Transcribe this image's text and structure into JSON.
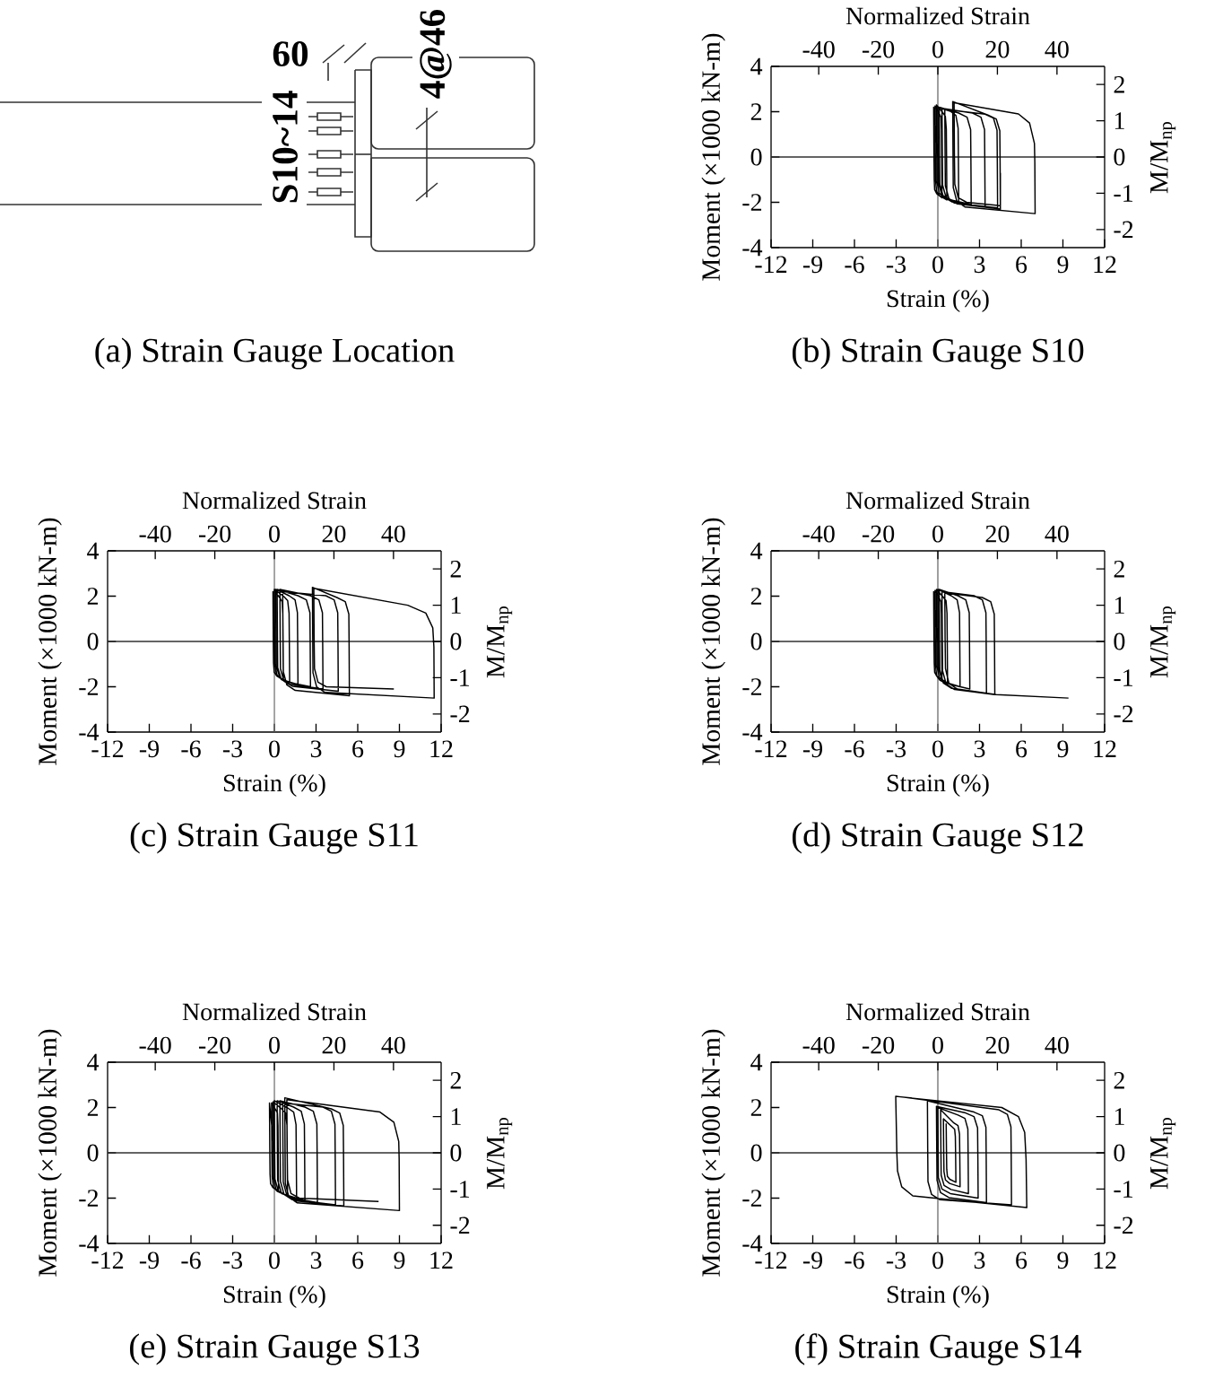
{
  "chart_data": [
    {
      "type": "other",
      "title": "(a) Strain Gauge Location",
      "annotations": [
        "60",
        "4@46",
        "S10~14"
      ]
    },
    {
      "type": "line",
      "title": "(b) Strain Gauge S10",
      "xlabel": "Strain (%)",
      "ylabel": "Moment (×1000 kN-m)",
      "x2label": "Normalized Strain",
      "y2label": "M/M$_{np}$",
      "xlim": [
        -12,
        12
      ],
      "xticks": [
        -12,
        -9,
        -6,
        -3,
        0,
        3,
        6,
        9,
        12
      ],
      "x2lim": [
        -56,
        56
      ],
      "x2ticks": [
        -40,
        -20,
        0,
        20,
        40
      ],
      "ylim": [
        -4,
        4
      ],
      "yticks": [
        -4,
        -2,
        0,
        2,
        4
      ],
      "y2lim": [
        -2.5,
        2.5
      ],
      "y2ticks": [
        -2,
        -1,
        0,
        1,
        2
      ],
      "ref_lines": [
        {
          "axis": "x",
          "value": 0,
          "color": "#707070"
        },
        {
          "axis": "y",
          "value": 0,
          "color": "#303030"
        }
      ],
      "color": "#000000",
      "x": [
        0,
        -0.3,
        -0.28,
        -0.26,
        -0.23,
        -0.08,
        0.3,
        0.28,
        0.26,
        0.23,
        0.08,
        -0.2,
        -0.18,
        -0.16,
        -0.09,
        0.12,
        0.65,
        0.63,
        0.61,
        0.54,
        0.33,
        -0.1,
        -0.08,
        -0.06,
        0.1,
        0.5,
        1.5,
        1.48,
        1.46,
        1.3,
        0.9,
        0,
        0.02,
        0.04,
        0.3,
        0.9,
        2.4,
        2.38,
        2.36,
        2.1,
        1.5,
        0.1,
        0.12,
        0.14,
        0.4,
        1.0,
        3.4,
        3.38,
        3.36,
        3.1,
        2.5,
        0.3,
        0.32,
        0.34,
        0.6,
        1.2,
        4.3,
        4.28,
        4.26,
        4.0,
        3.4,
        0.5,
        0.52,
        0.54,
        0.8,
        1.4,
        4.5,
        4.48,
        4.46,
        4.2,
        3.6,
        1.07,
        1.09,
        1.11,
        1.37,
        1.97,
        7.0,
        6.98,
        6.95,
        6.6,
        5.8,
        1.17,
        1.19,
        1.22,
        1.47,
        2.07,
        4.5,
        4.5
      ],
      "values": [
        0,
        2.2,
        0.22,
        -0.99,
        -1.44,
        -1.62,
        -1.8,
        -0.18,
        1.21,
        1.76,
        1.94,
        2.25,
        0.23,
        -1.05,
        -1.52,
        -1.71,
        -1.9,
        -0.19,
        1.24,
        1.8,
        1.98,
        2.3,
        0.23,
        -1.1,
        -1.6,
        -1.8,
        -2.0,
        -0.2,
        1.27,
        1.84,
        2.02,
        2.2,
        0.22,
        -1.16,
        -1.68,
        -1.89,
        -2.1,
        -0.21,
        1.21,
        1.76,
        1.94,
        2.2,
        0.22,
        -1.21,
        -1.76,
        -1.98,
        -2.2,
        -0.22,
        1.21,
        1.76,
        1.94,
        2.15,
        0.22,
        -1.24,
        -1.8,
        -2.03,
        -2.25,
        -0.23,
        1.18,
        1.72,
        1.89,
        2.1,
        0.21,
        -1.27,
        -1.84,
        -2.07,
        -2.3,
        -0.23,
        1.16,
        1.68,
        1.85,
        2.45,
        0.25,
        -1.35,
        -1.96,
        -2.21,
        -2.5,
        -0.25,
        0.6,
        1.5,
        1.9,
        2.4,
        0.2,
        -1.2,
        -1.8,
        -2.0,
        -2.15,
        -0.7
      ]
    },
    {
      "type": "line",
      "title": "(c) Strain Gauge S11",
      "xlabel": "Strain (%)",
      "ylabel": "Moment (×1000 kN-m)",
      "x2label": "Normalized Strain",
      "y2label": "M/M$_{np}$",
      "xlim": [
        -12,
        12
      ],
      "xticks": [
        -12,
        -9,
        -6,
        -3,
        0,
        3,
        6,
        9,
        12
      ],
      "x2lim": [
        -56,
        56
      ],
      "x2ticks": [
        -40,
        -20,
        0,
        20,
        40
      ],
      "ylim": [
        -4,
        4
      ],
      "yticks": [
        -4,
        -2,
        0,
        2,
        4
      ],
      "y2lim": [
        -2.5,
        2.5
      ],
      "y2ticks": [
        -2,
        -1,
        0,
        1,
        2
      ],
      "ref_lines": [
        {
          "axis": "x",
          "value": 0,
          "color": "#707070"
        },
        {
          "axis": "y",
          "value": 0,
          "color": "#303030"
        }
      ],
      "color": "#000000",
      "x": [
        0,
        -0.1,
        -0.08,
        -0.06,
        -0.01,
        0.18,
        0.65,
        0.63,
        0.61,
        0.56,
        0.37,
        0,
        0.02,
        0.04,
        0.14,
        0.41,
        1.1,
        1.08,
        1.06,
        0.96,
        0.69,
        0,
        0.02,
        0.04,
        0.21,
        0.64,
        1.7,
        1.68,
        1.66,
        1.49,
        1.06,
        0.1,
        0.12,
        0.14,
        0.4,
        1.0,
        2.6,
        2.58,
        2.56,
        2.3,
        1.7,
        0.2,
        0.22,
        0.24,
        0.5,
        1.1,
        3.5,
        3.48,
        3.46,
        3.2,
        2.6,
        0.4,
        0.42,
        0.44,
        0.7,
        1.3,
        4.6,
        4.58,
        4.56,
        4.3,
        3.7,
        0.6,
        0.62,
        0.64,
        0.9,
        1.5,
        5.4,
        5.38,
        5.36,
        5.1,
        4.5,
        2.74,
        2.76,
        2.78,
        3.04,
        3.64,
        11.5,
        11.48,
        11.4,
        10.9,
        9.6,
        2.84,
        2.86,
        2.89,
        3.14,
        3.74,
        8.6
      ],
      "values": [
        0,
        2.2,
        0.22,
        -0.94,
        -1.36,
        -1.53,
        -1.7,
        -0.17,
        1.21,
        1.76,
        1.94,
        2.25,
        0.23,
        -0.99,
        -1.44,
        -1.62,
        -1.8,
        -0.18,
        1.24,
        1.8,
        1.98,
        2.3,
        0.23,
        -1.05,
        -1.52,
        -1.71,
        -1.9,
        -0.19,
        1.27,
        1.84,
        2.02,
        2.3,
        0.23,
        -1.1,
        -1.6,
        -1.8,
        -2.0,
        -0.2,
        1.27,
        1.84,
        2.02,
        2.3,
        0.23,
        -1.16,
        -1.68,
        -1.89,
        -2.1,
        -0.21,
        1.27,
        1.84,
        2.02,
        2.3,
        0.23,
        -1.21,
        -1.76,
        -1.98,
        -2.2,
        -0.22,
        1.27,
        1.84,
        2.02,
        2.2,
        0.22,
        -1.32,
        -1.92,
        -2.16,
        -2.4,
        -0.24,
        1.21,
        1.76,
        1.94,
        2.39,
        0.24,
        -1.38,
        -2.0,
        -2.25,
        -2.5,
        -0.25,
        0.6,
        1.25,
        1.6,
        2.35,
        0.2,
        -1.2,
        -1.8,
        -2.0,
        -2.1
      ]
    },
    {
      "type": "line",
      "title": "(d) Strain Gauge S12",
      "xlabel": "Strain (%)",
      "ylabel": "Moment (×1000 kN-m)",
      "x2label": "Normalized Strain",
      "y2label": "M/M$_{np}$",
      "xlim": [
        -12,
        12
      ],
      "xticks": [
        -12,
        -9,
        -6,
        -3,
        0,
        3,
        6,
        9,
        12
      ],
      "x2lim": [
        -56,
        56
      ],
      "x2ticks": [
        -40,
        -20,
        0,
        20,
        40
      ],
      "ylim": [
        -4,
        4
      ],
      "yticks": [
        -4,
        -2,
        0,
        2,
        4
      ],
      "y2lim": [
        -2.5,
        2.5
      ],
      "y2ticks": [
        -2,
        -1,
        0,
        1,
        2
      ],
      "ref_lines": [
        {
          "axis": "x",
          "value": 0,
          "color": "#707070"
        },
        {
          "axis": "y",
          "value": 0,
          "color": "#303030"
        }
      ],
      "color": "#000000",
      "x": [
        0,
        -0.3,
        -0.28,
        -0.26,
        -0.23,
        -0.08,
        0.3,
        0.28,
        0.26,
        0.23,
        0.08,
        -0.2,
        -0.18,
        -0.16,
        -0.09,
        0.14,
        0.7,
        0.68,
        0.66,
        0.59,
        0.36,
        -0.1,
        -0.08,
        -0.06,
        0.11,
        0.54,
        1.6,
        1.58,
        1.56,
        1.39,
        0.96,
        0,
        0.02,
        0.04,
        0.29,
        0.86,
        2.3,
        2.28,
        2.26,
        2.01,
        1.44,
        0.1,
        0.12,
        0.14,
        0.4,
        1.0,
        3.5,
        3.48,
        3.46,
        3.2,
        2.6,
        0.3,
        0.32,
        0.34,
        0.6,
        1.2,
        4.1,
        4.08,
        4.06,
        3.8,
        3.2,
        0.5,
        0.52,
        0.55,
        0.8,
        1.4,
        4.2,
        9.4
      ],
      "values": [
        0,
        2.2,
        0.22,
        -0.94,
        -1.36,
        -1.53,
        -1.7,
        -0.17,
        1.21,
        1.76,
        1.94,
        2.25,
        0.23,
        -1.05,
        -1.52,
        -1.71,
        -1.9,
        -0.19,
        1.24,
        1.8,
        1.98,
        2.3,
        0.23,
        -1.1,
        -1.6,
        -1.8,
        -2.0,
        -0.2,
        1.27,
        1.84,
        2.02,
        2.3,
        0.23,
        -1.16,
        -1.68,
        -1.89,
        -2.1,
        -0.21,
        1.27,
        1.84,
        2.02,
        2.3,
        0.23,
        -1.27,
        -1.84,
        -2.07,
        -2.3,
        -0.23,
        1.27,
        1.84,
        2.02,
        2.2,
        0.22,
        -1.29,
        -1.88,
        -2.12,
        -2.35,
        -0.24,
        1.21,
        1.76,
        1.94,
        2.15,
        0.2,
        -1.2,
        -1.85,
        -2.1,
        -2.35,
        -2.5
      ]
    },
    {
      "type": "line",
      "title": "(e) Strain Gauge S13",
      "xlabel": "Strain (%)",
      "ylabel": "Moment (×1000 kN-m)",
      "x2label": "Normalized Strain",
      "y2label": "M/M$_{np}$",
      "xlim": [
        -12,
        12
      ],
      "xticks": [
        -12,
        -9,
        -6,
        -3,
        0,
        3,
        6,
        9,
        12
      ],
      "x2lim": [
        -56,
        56
      ],
      "x2ticks": [
        -40,
        -20,
        0,
        20,
        40
      ],
      "ylim": [
        -4,
        4
      ],
      "yticks": [
        -4,
        -2,
        0,
        2,
        4
      ],
      "y2lim": [
        -2.5,
        2.5
      ],
      "y2ticks": [
        -2,
        -1,
        0,
        1,
        2
      ],
      "ref_lines": [
        {
          "axis": "x",
          "value": 0,
          "color": "#707070"
        },
        {
          "axis": "y",
          "value": 0,
          "color": "#303030"
        }
      ],
      "color": "#000000",
      "x": [
        0,
        -0.35,
        -0.33,
        -0.31,
        -0.27,
        -0.11,
        0.3,
        0.28,
        0.26,
        0.22,
        0.06,
        -0.2,
        -0.18,
        -0.16,
        -0.06,
        0.23,
        0.95,
        0.93,
        0.91,
        0.81,
        0.52,
        -0.1,
        -0.08,
        -0.06,
        0.11,
        0.54,
        1.6,
        1.58,
        1.56,
        1.39,
        0.96,
        0,
        0.02,
        0.04,
        0.28,
        0.83,
        2.2,
        2.18,
        2.16,
        1.93,
        1.38,
        0.2,
        0.22,
        0.24,
        0.5,
        1.1,
        3.1,
        3.08,
        3.06,
        2.8,
        2.2,
        0.4,
        0.42,
        0.44,
        0.7,
        1.3,
        4.4,
        4.38,
        4.36,
        4.1,
        3.5,
        0.6,
        0.62,
        0.64,
        0.9,
        1.5,
        5.0,
        4.98,
        4.96,
        4.7,
        4.1,
        0.75,
        0.77,
        0.79,
        1.05,
        1.65,
        9.0,
        8.98,
        8.95,
        8.6,
        7.6,
        0.9,
        0.92,
        0.95,
        1.2,
        1.8,
        7.5
      ],
      "values": [
        0,
        2.2,
        0.22,
        -0.94,
        -1.36,
        -1.53,
        -1.7,
        -0.17,
        1.21,
        1.76,
        1.94,
        2.2,
        0.22,
        -1.05,
        -1.52,
        -1.71,
        -1.9,
        -0.19,
        1.21,
        1.76,
        1.94,
        2.25,
        0.23,
        -1.1,
        -1.6,
        -1.8,
        -2.0,
        -0.2,
        1.24,
        1.8,
        1.98,
        2.3,
        0.23,
        -1.16,
        -1.68,
        -1.89,
        -2.1,
        -0.21,
        1.27,
        1.84,
        2.02,
        2.3,
        0.23,
        -1.21,
        -1.76,
        -1.98,
        -2.2,
        -0.22,
        1.27,
        1.84,
        2.02,
        2.3,
        0.23,
        -1.27,
        -1.84,
        -2.07,
        -2.3,
        -0.23,
        1.27,
        1.84,
        2.02,
        2.2,
        0.22,
        -1.29,
        -1.88,
        -2.12,
        -2.35,
        -0.24,
        1.21,
        1.76,
        1.94,
        2.43,
        0.24,
        -1.35,
        -1.96,
        -2.21,
        -2.55,
        -0.25,
        0.5,
        1.35,
        1.8,
        2.35,
        0.2,
        -1.2,
        -1.8,
        -2.0,
        -2.15
      ]
    },
    {
      "type": "line",
      "title": "(f) Strain Gauge S14",
      "xlabel": "Strain (%)",
      "ylabel": "Moment (×1000 kN-m)",
      "x2label": "Normalized Strain",
      "y2label": "M/M$_{np}$",
      "xlim": [
        -12,
        12
      ],
      "xticks": [
        -12,
        -9,
        -6,
        -3,
        0,
        3,
        6,
        9,
        12
      ],
      "x2lim": [
        -56,
        56
      ],
      "x2ticks": [
        -40,
        -20,
        0,
        20,
        40
      ],
      "ylim": [
        -4,
        4
      ],
      "yticks": [
        -4,
        -2,
        0,
        2,
        4
      ],
      "y2lim": [
        -2.5,
        2.5
      ],
      "y2ticks": [
        -2,
        -1,
        0,
        1,
        2
      ],
      "ref_lines": [
        {
          "axis": "x",
          "value": 0,
          "color": "#707070"
        },
        {
          "axis": "y",
          "value": 0,
          "color": "#303030"
        }
      ],
      "color": "#000000",
      "x": [
        0.6,
        0.62,
        0.64,
        0.69,
        0.86,
        1.3,
        1.28,
        1.26,
        1.21,
        1.04,
        0.4,
        0.42,
        0.44,
        0.55,
        0.85,
        1.6,
        1.58,
        1.56,
        1.45,
        1.15,
        0.2,
        0.22,
        0.24,
        0.45,
        0.95,
        2.2,
        2.18,
        2.16,
        1.95,
        1.45,
        0,
        0.02,
        0.04,
        0.3,
        0.9,
        2.9,
        2.88,
        2.86,
        2.6,
        2.0,
        -0.1,
        -0.08,
        -0.06,
        0.2,
        0.8,
        3.5,
        3.48,
        3.46,
        3.2,
        2.6,
        -0.75,
        -0.73,
        -0.71,
        -0.45,
        0.15,
        5.3,
        5.28,
        5.26,
        5.0,
        4.4,
        -3.03,
        -2.95,
        -2.9,
        -2.6,
        -1.8,
        6.4,
        6.35,
        6.25,
        5.8,
        4.6,
        -3.0
      ],
      "values": [
        1.3,
        0.13,
        -0.72,
        -1.04,
        -1.17,
        -1.3,
        -0.13,
        0.72,
        1.04,
        1.14,
        1.5,
        0.15,
        -0.83,
        -1.2,
        -1.35,
        -1.5,
        -0.15,
        0.83,
        1.2,
        1.32,
        1.9,
        0.19,
        -0.99,
        -1.44,
        -1.62,
        -1.8,
        -0.18,
        1.05,
        1.52,
        1.67,
        2.0,
        0.2,
        -1.1,
        -1.6,
        -1.8,
        -2.0,
        -0.2,
        1.1,
        1.6,
        1.76,
        2.05,
        0.21,
        -1.21,
        -1.76,
        -1.98,
        -2.2,
        -0.22,
        1.13,
        1.64,
        1.8,
        2.3,
        0.23,
        -1.27,
        -1.84,
        -2.07,
        -2.3,
        -0.23,
        1.15,
        1.7,
        1.9,
        2.5,
        0,
        -0.8,
        -1.5,
        -1.9,
        -2.42,
        -0.3,
        0.9,
        1.6,
        2.0,
        2.49
      ]
    }
  ]
}
